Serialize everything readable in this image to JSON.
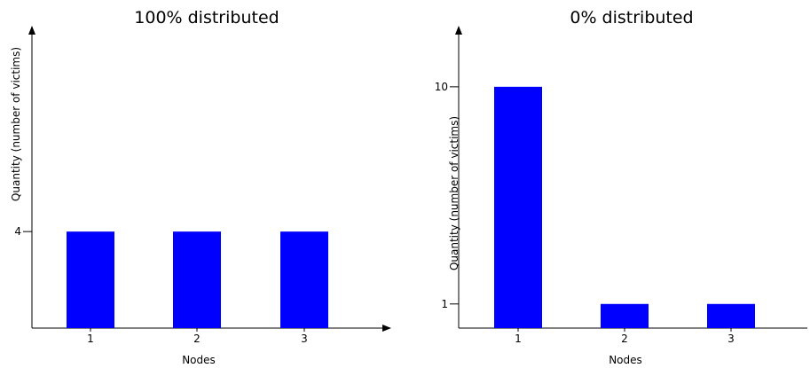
{
  "chart_data": [
    {
      "type": "bar",
      "title": "100% distributed",
      "xlabel": "Nodes",
      "ylabel": "Quantity (number of victims)",
      "categories": [
        "1",
        "2",
        "3"
      ],
      "values": [
        4,
        4,
        4
      ],
      "yticks": [
        4
      ],
      "ylim": [
        0,
        12.2
      ],
      "bar_color": "#0000ff",
      "grid": false,
      "legend": "none"
    },
    {
      "type": "bar",
      "title": "0% distributed",
      "xlabel": "Nodes",
      "ylabel": "Quantity (number of victims)",
      "categories": [
        "1",
        "2",
        "3"
      ],
      "values": [
        10,
        1,
        1
      ],
      "yticks": [
        1,
        10
      ],
      "ylim": [
        0,
        12.2
      ],
      "bar_color": "#0000ff",
      "grid": false,
      "legend": "none"
    }
  ]
}
